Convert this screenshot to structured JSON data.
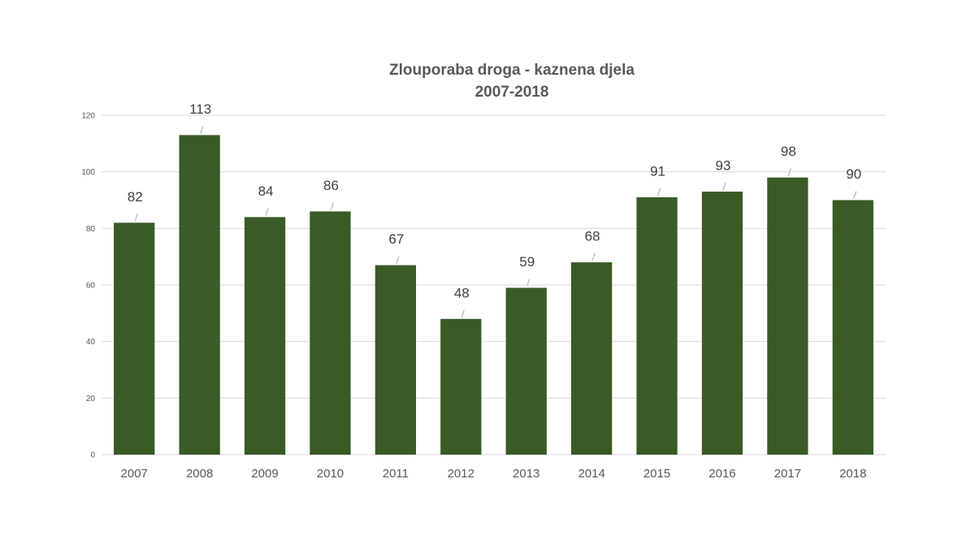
{
  "chart_data": {
    "type": "bar",
    "title": "Zlouporaba droga - kaznena djela",
    "subtitle": "2007-2018",
    "categories": [
      "2007",
      "2008",
      "2009",
      "2010",
      "2011",
      "2012",
      "2013",
      "2014",
      "2015",
      "2016",
      "2017",
      "2018"
    ],
    "values": [
      82,
      113,
      84,
      86,
      67,
      48,
      59,
      68,
      91,
      93,
      98,
      90
    ],
    "xlabel": "",
    "ylabel": "",
    "ylim": [
      0,
      120
    ],
    "yticks": [
      0,
      20,
      40,
      60,
      80,
      100,
      120
    ],
    "grid": true,
    "legend": "none",
    "bar_color": "#3a5a26"
  }
}
